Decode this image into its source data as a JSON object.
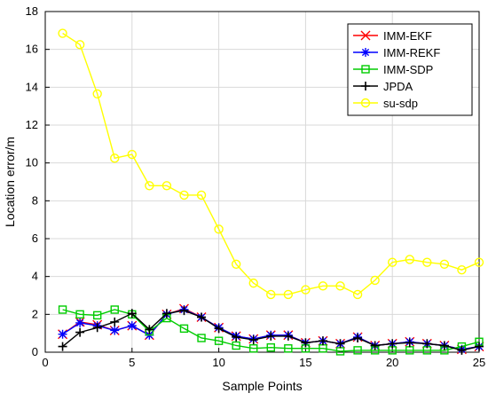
{
  "chart_data": {
    "type": "line",
    "title": "",
    "xlabel": "Sample Points",
    "ylabel": "Location error/m",
    "xlim": [
      0,
      25
    ],
    "ylim": [
      0,
      18
    ],
    "x_ticks": [
      0,
      5,
      10,
      15,
      20,
      25
    ],
    "y_ticks": [
      0,
      2,
      4,
      6,
      8,
      10,
      12,
      14,
      16,
      18
    ],
    "grid": true,
    "legend_position": "top-right",
    "x": [
      1,
      2,
      3,
      4,
      5,
      6,
      7,
      8,
      9,
      10,
      11,
      12,
      13,
      14,
      15,
      16,
      17,
      18,
      19,
      20,
      21,
      22,
      23,
      24,
      25
    ],
    "series": [
      {
        "name": "IMM-EKF",
        "color": "#ff0000",
        "marker": "x",
        "values": [
          0.95,
          1.6,
          1.45,
          1.15,
          1.4,
          0.9,
          2.0,
          2.3,
          1.85,
          1.3,
          0.85,
          0.7,
          0.9,
          0.9,
          0.5,
          0.6,
          0.45,
          0.8,
          0.35,
          0.45,
          0.55,
          0.45,
          0.35,
          0.15,
          0.3
        ]
      },
      {
        "name": "IMM-REKF",
        "color": "#0000ff",
        "marker": "asterisk",
        "values": [
          0.95,
          1.55,
          1.4,
          1.15,
          1.4,
          0.9,
          2.0,
          2.25,
          1.85,
          1.3,
          0.85,
          0.7,
          0.9,
          0.9,
          0.5,
          0.6,
          0.45,
          0.8,
          0.35,
          0.45,
          0.55,
          0.45,
          0.35,
          0.15,
          0.3
        ]
      },
      {
        "name": "IMM-SDP",
        "color": "#00cc00",
        "marker": "square",
        "values": [
          2.25,
          2.0,
          1.95,
          2.25,
          2.0,
          1.1,
          1.8,
          1.25,
          0.75,
          0.6,
          0.35,
          0.2,
          0.25,
          0.2,
          0.2,
          0.2,
          0.05,
          0.1,
          0.1,
          0.1,
          0.1,
          0.1,
          0.1,
          0.3,
          0.55
        ]
      },
      {
        "name": "JPDA",
        "color": "#000000",
        "marker": "plus",
        "values": [
          0.3,
          1.05,
          1.3,
          1.6,
          2.05,
          1.2,
          2.05,
          2.2,
          1.85,
          1.25,
          0.8,
          0.65,
          0.85,
          0.85,
          0.5,
          0.6,
          0.45,
          0.75,
          0.35,
          0.45,
          0.5,
          0.45,
          0.35,
          0.1,
          0.3
        ]
      },
      {
        "name": "su-sdp",
        "color": "#ffff00",
        "marker": "circle",
        "values": [
          16.85,
          16.25,
          13.65,
          10.25,
          10.45,
          8.8,
          8.8,
          8.3,
          8.3,
          6.5,
          4.65,
          3.65,
          3.05,
          3.05,
          3.3,
          3.5,
          3.5,
          3.05,
          3.8,
          4.75,
          4.9,
          4.75,
          4.65,
          4.35,
          4.75
        ]
      }
    ]
  }
}
